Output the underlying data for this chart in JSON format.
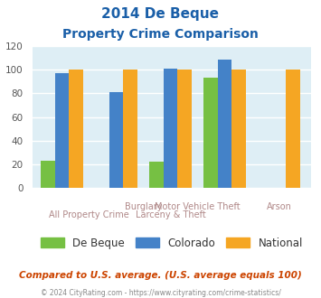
{
  "title_line1": "2014 De Beque",
  "title_line2": "Property Crime Comparison",
  "db_vals": [
    23,
    0,
    22,
    93,
    0
  ],
  "co_vals": [
    97,
    81,
    101,
    109,
    0
  ],
  "nat_vals": [
    100,
    100,
    100,
    100,
    100
  ],
  "color_debeque": "#76c043",
  "color_colorado": "#4482c8",
  "color_national": "#f5a623",
  "ylim": [
    0,
    120
  ],
  "yticks": [
    0,
    20,
    40,
    60,
    80,
    100,
    120
  ],
  "bg_color": "#deeef5",
  "title_color": "#1a5fa8",
  "axis_label_color": "#b08888",
  "legend_label_color": "#333333",
  "footer_text": "Compared to U.S. average. (U.S. average equals 100)",
  "footer_color": "#cc4400",
  "copyright_text": "© 2024 CityRating.com - https://www.cityrating.com/crime-statistics/",
  "copyright_color": "#888888"
}
